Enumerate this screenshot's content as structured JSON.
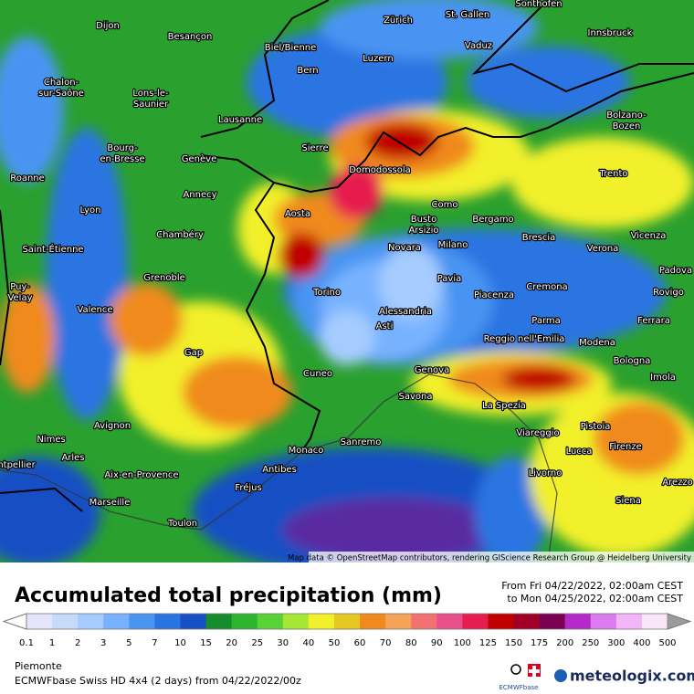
{
  "header": {
    "title": "Accumulated total precipitation (mm)",
    "period_from": "From Fri 04/22/2022, 02:00am CEST",
    "period_to": "to Mon 04/25/2022, 02:00am CEST"
  },
  "legend": {
    "levels": [
      0.1,
      1,
      2,
      3,
      5,
      7,
      10,
      15,
      20,
      25,
      30,
      40,
      50,
      60,
      70,
      80,
      90,
      100,
      125,
      150,
      175,
      200,
      250,
      300,
      400,
      500
    ],
    "colors": [
      "#e4e4fa",
      "#c4dcfa",
      "#a6ccff",
      "#78b2ff",
      "#4a94f2",
      "#2a74e2",
      "#1650c4",
      "#168c2c",
      "#2eb42e",
      "#58d236",
      "#a6e634",
      "#f2f02a",
      "#e6c820",
      "#f08a1e",
      "#f4a458",
      "#f27272",
      "#e8508c",
      "#e61e50",
      "#c00000",
      "#a00028",
      "#7a0052",
      "#b42ac8",
      "#dc7af0",
      "#f2b6f8",
      "#f8e6f8"
    ],
    "under_color": "#ffffff",
    "over_color": "#9a9a9a"
  },
  "map": {
    "attribution": "Map data © OpenStreetMap contributors, rendering GIScience Research Group @ Heidelberg University",
    "cities": [
      "Sonthofen",
      "Dijon",
      "Besançon",
      "Biel/Bienne",
      "Zürich",
      "St. Gallen",
      "Vaduz",
      "Innsbruck",
      "Luzern",
      "Bern",
      [
        "Chalon-",
        "sur-Saône"
      ],
      [
        "Lons-le-",
        "Saunier"
      ],
      "Lausanne",
      [
        "Bolzano-",
        "Bozen"
      ],
      "Sierre",
      [
        "Bourg-",
        "en-Bresse"
      ],
      "Genève",
      "Domodossola",
      "Trento",
      "Roanne",
      "Annecy",
      "Como",
      "Aosta",
      [
        "Busto",
        "Arsizio"
      ],
      "Bergamo",
      "Lyon",
      "Chambéry",
      "Vicenza",
      "Brescia",
      "Novara",
      "Milano",
      "Verona",
      "Saint-Étienne",
      "Grenoble",
      "Pavia",
      "Padova",
      "Cremona",
      [
        "Puy-",
        "Velay"
      ],
      "Torino",
      "Piacenza",
      "Rovigo",
      "Valence",
      "Alessandria",
      "Parma",
      "Ferrara",
      "Asti",
      "Reggio nell'Emilia",
      "Modena",
      "Gap",
      "Bologna",
      "Genova",
      "Cuneo",
      "Imola",
      "Savona",
      "La Spezia",
      "Avignon",
      "Pistoia",
      "Viareggio",
      "Nimes",
      "Sanremo",
      "Monaco",
      "Lucca",
      "Firenze",
      "Arles",
      "ntpellier",
      "Antibes",
      "Aix-en-Provence",
      "Livorno",
      "Arezzo",
      "Fréjus",
      "Siena",
      "Marseille",
      "Toulon"
    ]
  },
  "footer": {
    "region": "Piemonte",
    "model": "ECMWFbase Swiss HD 4x4 (2 days) from  04/22/2022/00z",
    "logo_text": "ECMWFbase",
    "brand": "meteologix.com"
  }
}
